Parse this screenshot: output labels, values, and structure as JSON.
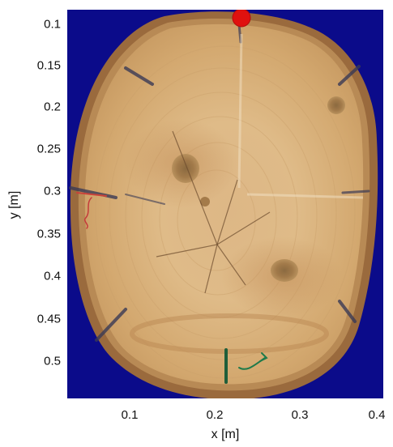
{
  "axes": {
    "x_label": "x [m]",
    "y_label": "y [m]",
    "x_ticks": [
      "0.1",
      "0.2",
      "0.3",
      "0.4"
    ],
    "y_ticks": [
      "0.1",
      "0.15",
      "0.2",
      "0.25",
      "0.3",
      "0.35",
      "0.4",
      "0.45",
      "0.5"
    ],
    "y_reversed": true
  },
  "colors": {
    "background": "#0b0b8a",
    "wood": "#d8b27b",
    "bark": "#9a6a3d",
    "marker": "#e0110f"
  },
  "marker": {
    "x": 0.232,
    "y": 0.1,
    "icon": "red-dot-marker-icon"
  },
  "image": {
    "subject": "tree-cross-section-icon"
  }
}
